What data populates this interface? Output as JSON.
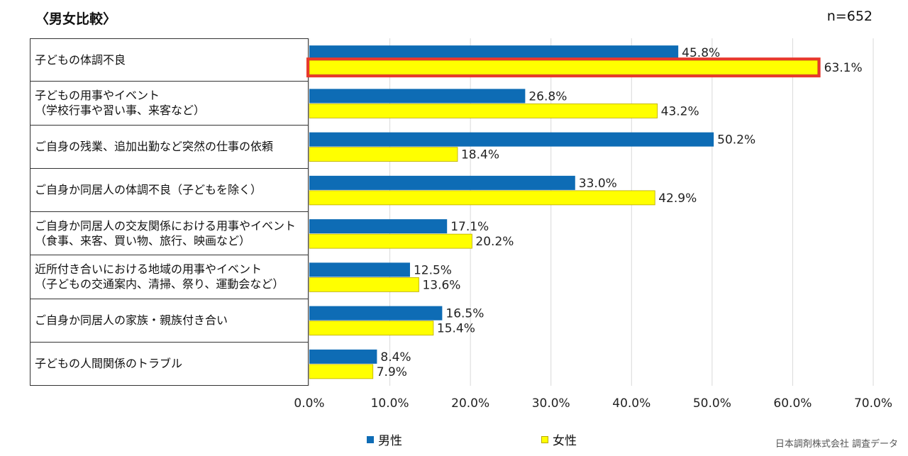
{
  "header": {
    "title": "〈男女比較〉",
    "sample": "n=652"
  },
  "credit": "日本調剤株式会社 調査データ",
  "colors": {
    "male": "#0e6cb5",
    "female": "#ffff00",
    "female_border": "#b8a800",
    "highlight": "#e8392c",
    "grid": "#d9d9d9"
  },
  "chart_data": {
    "type": "bar",
    "orientation": "horizontal",
    "xlim": [
      0,
      70
    ],
    "ticks": [
      "0.0%",
      "10.0%",
      "20.0%",
      "30.0%",
      "40.0%",
      "50.0%",
      "60.0%",
      "70.0%"
    ],
    "tick_values": [
      0,
      10,
      20,
      30,
      40,
      50,
      60,
      70
    ],
    "grid": true,
    "legend_position": "bottom",
    "categories": [
      [
        "子どもの体調不良"
      ],
      [
        "子どもの用事やイベント",
        "（学校行事や習い事、来客など）"
      ],
      [
        "ご自身の残業、追加出勤など突然の仕事の依頼"
      ],
      [
        "ご自身か同居人の体調不良（子どもを除く）"
      ],
      [
        "ご自身か同居人の交友関係における用事やイベント",
        "（食事、来客、買い物、旅行、映画など）"
      ],
      [
        "近所付き合いにおける地域の用事やイベント",
        "（子どもの交通案内、清掃、祭り、運動会など）"
      ],
      [
        "ご自身か同居人の家族・親族付き合い"
      ],
      [
        "子どもの人間関係のトラブル"
      ]
    ],
    "series": [
      {
        "name": "男性",
        "values": [
          45.8,
          26.8,
          50.2,
          33.0,
          17.1,
          12.5,
          16.5,
          8.4
        ],
        "labels": [
          "45.8%",
          "26.8%",
          "50.2%",
          "33.0%",
          "17.1%",
          "12.5%",
          "16.5%",
          "8.4%"
        ]
      },
      {
        "name": "女性",
        "values": [
          63.1,
          43.2,
          18.4,
          42.9,
          20.2,
          13.6,
          15.4,
          7.9
        ],
        "labels": [
          "63.1%",
          "43.2%",
          "18.4%",
          "42.9%",
          "20.2%",
          "13.6%",
          "15.4%",
          "7.9%"
        ]
      }
    ],
    "highlight": {
      "series": 1,
      "category": 0
    }
  }
}
